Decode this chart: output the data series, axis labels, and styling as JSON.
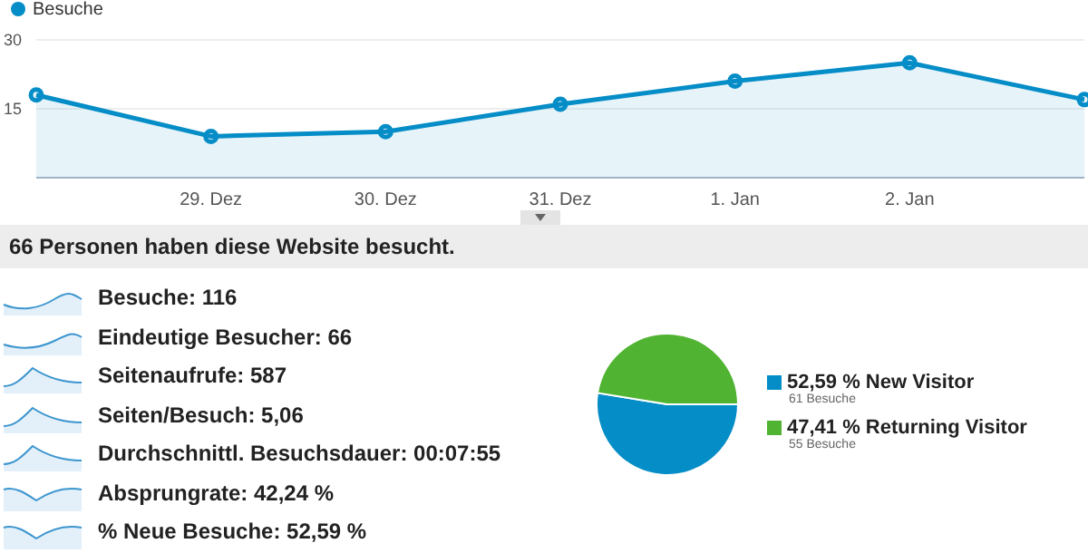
{
  "chart_data": [
    {
      "type": "area",
      "categories": [
        null,
        "29. Dez",
        "30. Dez",
        "31. Dez",
        "1. Jan",
        "2. Jan",
        null
      ],
      "series": [
        {
          "name": "Besuche",
          "color": "#058dc7",
          "values": [
            18,
            9,
            10,
            16,
            21,
            25,
            17
          ]
        }
      ],
      "ylim": [
        0,
        30
      ],
      "yticks": [
        {
          "value": 0,
          "label": null
        },
        15,
        30
      ],
      "grid": "y",
      "legend": "top left",
      "marker": "circle"
    },
    {
      "type": "other",
      "title": "66 Personen haben diese Website besucht.",
      "annotations": [
        "Besuche: 116",
        "Eindeutige Besucher: 66",
        "Seitenaufrufe: 587",
        "Seiten/Besuch: 5,06",
        "Durchschnittl. Besuchsdauer: 00:07:55",
        "Absprungrate: 42,24 %",
        "% Neue Besuche: 52,59 %"
      ]
    },
    {
      "type": "pie",
      "categories": [
        "New Visitor",
        "Returning Visitor"
      ],
      "values": [
        52.59,
        47.41
      ],
      "colors": [
        "#058dc7",
        "#50b432"
      ],
      "value_labels": [
        "52,59 %",
        "47,41 %"
      ],
      "annotations": [
        "61 Besuche",
        "55 Besuche"
      ],
      "legend": "right"
    }
  ]
}
